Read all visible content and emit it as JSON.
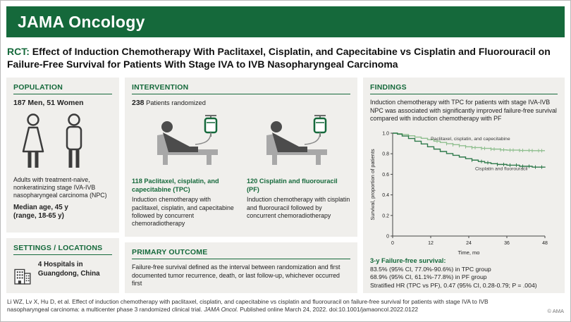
{
  "header": {
    "brand": "JAMA Oncology"
  },
  "title": {
    "tag": "RCT:",
    "text": "Effect of Induction Chemotherapy With Paclitaxel, Cisplatin, and Capecitabine vs Cisplatin and Fluorouracil on Failure-Free Survival for Patients With Stage IVA to IVB Nasopharyngeal Carcinoma"
  },
  "population": {
    "heading": "POPULATION",
    "count": "187 Men, 51 Women",
    "description": "Adults with treatment-naive, nonkeratinizing stage IVA-IVB nasopharyngeal carcinoma (NPC)",
    "median_age": "Median age, 45 y",
    "range": "(range, 18-65 y)"
  },
  "settings": {
    "heading": "SETTINGS / LOCATIONS",
    "text": "4 Hospitals in Guangdong, China"
  },
  "intervention": {
    "heading": "INTERVENTION",
    "randomized_n": "238",
    "randomized_label": " Patients randomized",
    "arms": [
      {
        "n": "118",
        "name": "Paclitaxel, cisplatin, and capecitabine (TPC)",
        "description": "Induction chemotherapy with paclitaxel, cisplatin, and capecitabine followed by concurrent chemoradiotherapy"
      },
      {
        "n": "120",
        "name": "Cisplatin and fluorouracil (PF)",
        "description": "Induction chemotherapy with cisplatin and fluorouracil followed by concurrent chemoradiotherapy"
      }
    ]
  },
  "primary_outcome": {
    "heading": "PRIMARY OUTCOME",
    "text": "Failure-free survival defined as the interval between randomization and first documented tumor recurrence, death, or last follow-up, whichever occurred first"
  },
  "findings": {
    "heading": "FINDINGS",
    "summary": "Induction chemotherapy with TPC for patients with stage IVA-IVB NPC was associated with significantly improved failure-free survival compared with induction chemotherapy with PF",
    "results_heading": "3-y Failure-free survival:",
    "results": [
      "83.5% (95% CI, 77.0%-90.6%) in TPC group",
      "68.9% (95% CI, 61.1%-77.8%) in PF group",
      "Stratified HR (TPC vs PF), 0.47 (95% CI, 0.28-0.79; P = .004)"
    ]
  },
  "chart_data": {
    "type": "line",
    "title": "",
    "xlabel": "Time, mo",
    "ylabel": "Survival, proportion of patients",
    "xlim": [
      0,
      48
    ],
    "ylim": [
      0,
      1.0
    ],
    "xticks": [
      0,
      12,
      24,
      36,
      48
    ],
    "yticks": [
      0,
      0.2,
      0.4,
      0.6,
      0.8,
      1.0
    ],
    "grid": false,
    "legend_position": "inline-annotations",
    "series": [
      {
        "name": "Paclitaxel, cisplatin, and capecitabine",
        "color": "#8fbf8f",
        "points": [
          [
            0,
            1.0
          ],
          [
            1.5,
            0.995
          ],
          [
            3,
            0.987
          ],
          [
            5,
            0.975
          ],
          [
            7,
            0.962
          ],
          [
            9,
            0.95
          ],
          [
            11,
            0.937
          ],
          [
            13,
            0.922
          ],
          [
            15,
            0.91
          ],
          [
            17,
            0.898
          ],
          [
            19,
            0.888
          ],
          [
            21,
            0.878
          ],
          [
            23,
            0.868
          ],
          [
            25,
            0.86
          ],
          [
            28,
            0.852
          ],
          [
            31,
            0.845
          ],
          [
            34,
            0.838
          ],
          [
            36,
            0.835
          ],
          [
            40,
            0.832
          ],
          [
            44,
            0.83
          ],
          [
            48,
            0.83
          ]
        ],
        "censors": [
          14,
          17,
          19,
          21,
          23,
          25,
          26,
          28,
          29,
          31,
          32,
          34,
          35,
          37,
          38,
          40,
          41,
          43,
          44,
          46,
          47
        ],
        "value_at_36mo": 0.835
      },
      {
        "name": "Cisplatin and fluorouracil",
        "color": "#2f7a4b",
        "points": [
          [
            0,
            1.0
          ],
          [
            1.5,
            0.99
          ],
          [
            3,
            0.972
          ],
          [
            5,
            0.948
          ],
          [
            7,
            0.922
          ],
          [
            9,
            0.895
          ],
          [
            11,
            0.868
          ],
          [
            13,
            0.845
          ],
          [
            15,
            0.822
          ],
          [
            17,
            0.802
          ],
          [
            19,
            0.785
          ],
          [
            21,
            0.768
          ],
          [
            23,
            0.752
          ],
          [
            25,
            0.738
          ],
          [
            27,
            0.725
          ],
          [
            29,
            0.713
          ],
          [
            31,
            0.703
          ],
          [
            33,
            0.696
          ],
          [
            36,
            0.689
          ],
          [
            40,
            0.678
          ],
          [
            44,
            0.67
          ],
          [
            48,
            0.665
          ]
        ],
        "censors": [
          25,
          28,
          30,
          33,
          35,
          37,
          39,
          41,
          43,
          45,
          47
        ],
        "value_at_36mo": 0.689
      }
    ],
    "annotations": [
      {
        "text": "Paclitaxel, cisplatin, and capecitabine",
        "x": 12,
        "y": 0.93
      },
      {
        "text": "Cisplatin and fluorouracil",
        "x": 26,
        "y": 0.64
      }
    ]
  },
  "footer": {
    "citation_before": "Li WZ, Lv X, Hu D, et al. Effect of induction chemotherapy with paclitaxel, cisplatin, and capecitabine vs cisplatin and fluorouracil on failure-free survival for patients with stage IVA to IVB nasopharyngeal carcinoma: a multicenter phase 3 randomized clinical trial. ",
    "journal": "JAMA Oncol.",
    "citation_after": " Published online March 24, 2022. doi:10.1001/jamaoncol.2022.0122",
    "copyright": "© AMA"
  },
  "colors": {
    "brand_green": "#15693b",
    "panel_background": "#f0efec",
    "tpc_curve": "#8fbf8f",
    "pf_curve": "#2f7a4b"
  }
}
